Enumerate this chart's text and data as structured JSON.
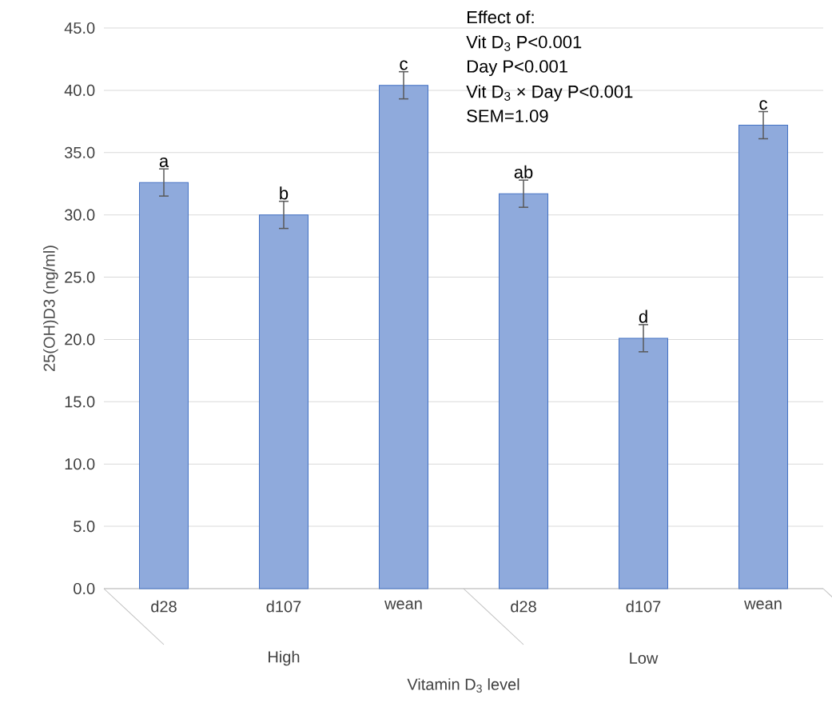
{
  "chart_data": {
    "type": "bar",
    "categories": [
      "d28",
      "d107",
      "wean",
      "d28",
      "d107",
      "wean"
    ],
    "values": [
      32.6,
      30.0,
      40.4,
      31.7,
      20.1,
      37.2
    ],
    "errors": [
      1.09,
      1.09,
      1.09,
      1.09,
      1.09,
      1.09
    ],
    "value_labels": [
      "a",
      "b",
      "c",
      "ab",
      "d",
      "c"
    ],
    "color": "#8faadc",
    "ylabel": "25(OH)D3 (ng/ml)",
    "xlabel": "Vitamin D$_{3}$ level",
    "ylim": [
      0,
      45
    ],
    "yticks": [
      {
        "value": 0,
        "label": "0.0"
      },
      {
        "value": 5,
        "label": "5.0"
      },
      {
        "value": 10,
        "label": "10.0"
      },
      {
        "value": 15,
        "label": "15.0"
      },
      {
        "value": 20,
        "label": "20.0"
      },
      {
        "value": 25,
        "label": "25.0"
      },
      {
        "value": 30,
        "label": "30.0"
      },
      {
        "value": 35,
        "label": "35.0"
      },
      {
        "value": 40,
        "label": "40.0"
      },
      {
        "value": 45,
        "label": "45.0"
      }
    ],
    "grid": "y",
    "annotations": [
      "High",
      "Low",
      "Effect of:",
      "Vit D$_{3}$ P<0.001",
      "Day P<0.001",
      "Vit D$_{3}$ × Day P<0.001",
      "SEM=1.09"
    ]
  }
}
